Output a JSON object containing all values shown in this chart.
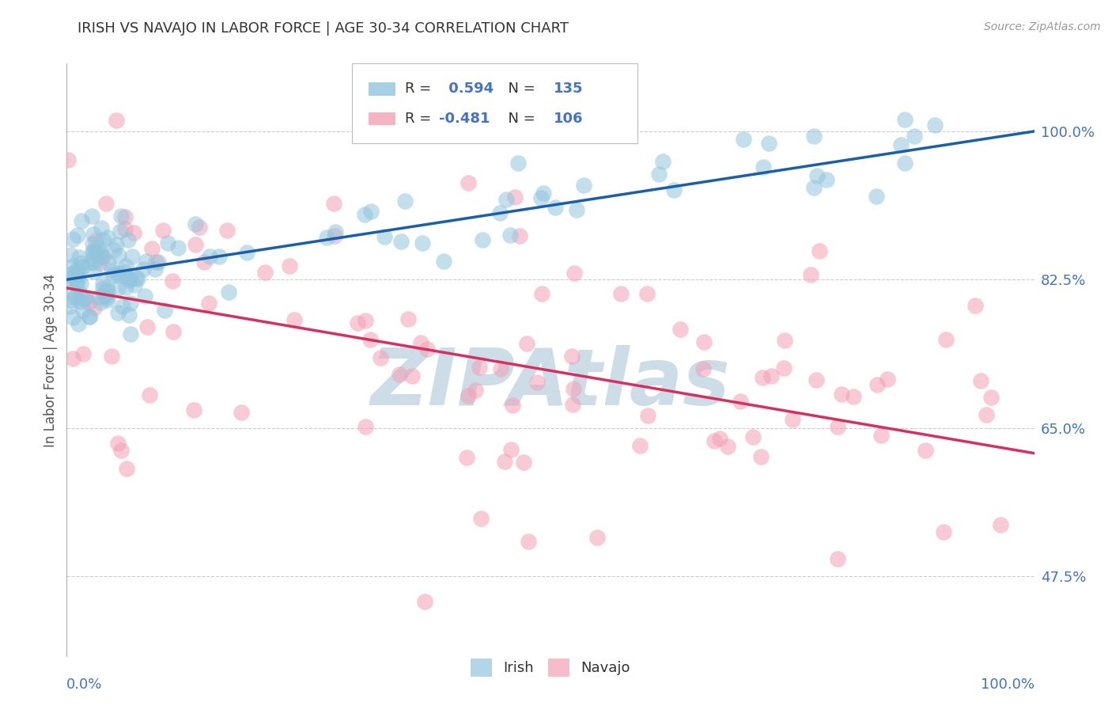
{
  "title": "IRISH VS NAVAJO IN LABOR FORCE | AGE 30-34 CORRELATION CHART",
  "source_text": "Source: ZipAtlas.com",
  "ylabel": "In Labor Force | Age 30-34",
  "xlim": [
    0.0,
    1.0
  ],
  "ylim": [
    0.38,
    1.08
  ],
  "ytick_positions": [
    0.475,
    0.65,
    0.825,
    1.0
  ],
  "ytick_labels": [
    "47.5%",
    "65.0%",
    "82.5%",
    "100.0%"
  ],
  "xtick_positions": [
    0.0,
    1.0
  ],
  "xtick_labels": [
    "0.0%",
    "100.0%"
  ],
  "irish_color": "#92c5de",
  "navajo_color": "#f4a0b5",
  "irish_line_color": "#1a5fa8",
  "navajo_line_color": "#d63060",
  "irish_R": 0.594,
  "irish_N": 135,
  "navajo_R": -0.481,
  "navajo_N": 106,
  "irish_intercept": 0.825,
  "irish_slope": 0.175,
  "navajo_intercept": 0.815,
  "navajo_slope": -0.195,
  "watermark": "ZIPAtlas",
  "watermark_color": "#ccdde8",
  "title_color": "#333333",
  "axis_label_color": "#555555",
  "tick_color": "#4472c4",
  "grid_color": "#cccccc",
  "background_color": "#ffffff",
  "legend_irish_label": "Irish",
  "legend_navajo_label": "Navajo"
}
